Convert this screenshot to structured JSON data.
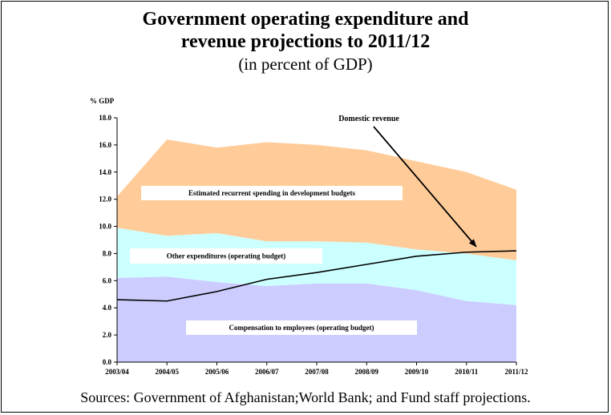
{
  "header": {
    "title_line1": "Government operating expenditure and",
    "title_line2": "revenue projections to 2011/12",
    "subtitle": "(in percent of GDP)"
  },
  "footer": {
    "source": "Sources: Government of Afghanistan;World Bank; and Fund staff projections."
  },
  "chart_data": {
    "type": "area",
    "x": [
      "2003/04",
      "2004/05",
      "2005/06",
      "2006/07",
      "2007/08",
      "2008/09",
      "2009/10",
      "2010/11",
      "2011/12"
    ],
    "ylabel": "% GDP",
    "ylim": [
      0,
      18
    ],
    "yticks": [
      "0.0",
      "2.0",
      "4.0",
      "6.0",
      "8.0",
      "10.0",
      "12.0",
      "14.0",
      "16.0",
      "18.0"
    ],
    "grid": false,
    "stacked_areas": [
      {
        "name": "Compensation to employees (operating budget)",
        "color": "#ccccff",
        "top": [
          6.2,
          6.3,
          5.9,
          5.6,
          5.8,
          5.8,
          5.3,
          4.5,
          4.2
        ]
      },
      {
        "name": "Other expenditures (operating budget)",
        "color": "#ccffff",
        "top": [
          9.9,
          9.3,
          9.5,
          8.9,
          8.9,
          8.8,
          8.3,
          8.0,
          7.5
        ]
      },
      {
        "name": "Estimated recurrent spending in development budgets",
        "color": "#ffcc99",
        "top": [
          12.2,
          16.4,
          15.8,
          16.2,
          16.0,
          15.6,
          14.8,
          14.0,
          12.7
        ]
      }
    ],
    "lines": [
      {
        "name": "Domestic revenue",
        "color": "#000000",
        "values": [
          4.6,
          4.5,
          5.2,
          6.1,
          6.6,
          7.2,
          7.8,
          8.1,
          8.2
        ]
      }
    ],
    "annotation": {
      "text": "Domestic revenue",
      "arrow_to_category": "2010/11",
      "arrow_to_value": 8.1
    }
  }
}
